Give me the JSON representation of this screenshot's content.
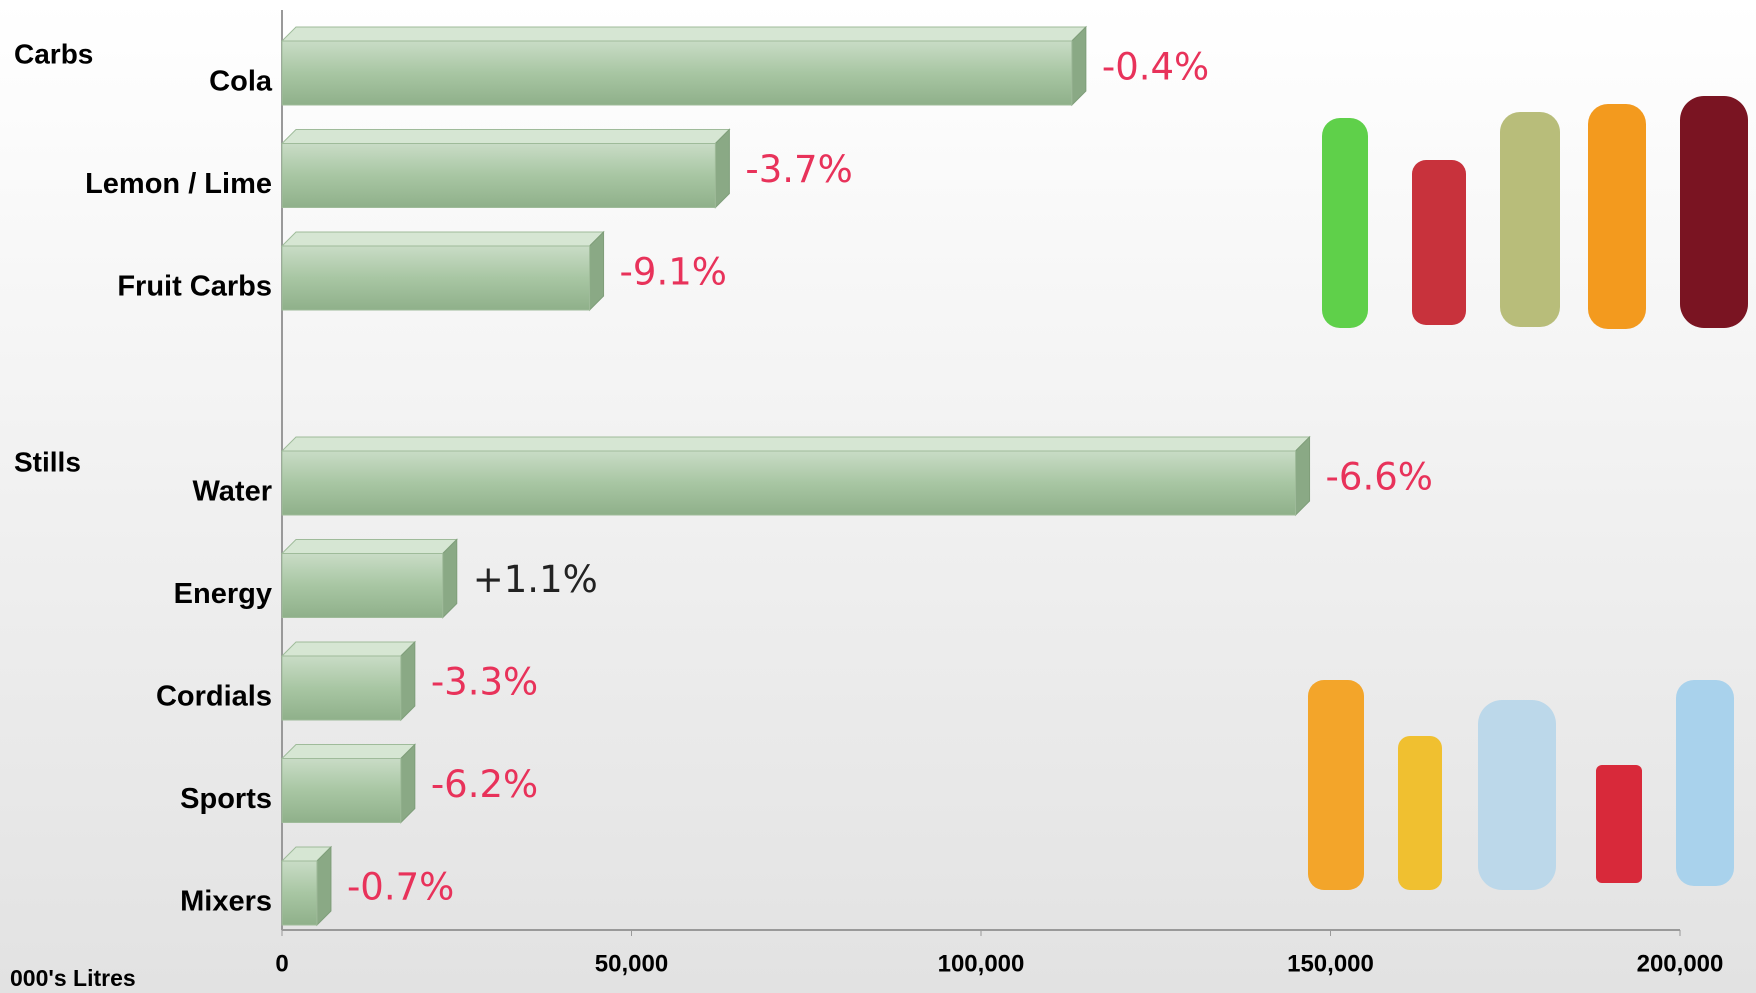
{
  "chart_data": {
    "type": "bar",
    "orientation": "horizontal",
    "group_labels": [
      "Carbs",
      "Stills"
    ],
    "categories": [
      "Cola",
      "Lemon / Lime",
      "Fruit Carbs",
      null,
      "Water",
      "Energy",
      "Cordials",
      "Sports",
      "Mixers"
    ],
    "values": [
      113000,
      62000,
      44000,
      null,
      145000,
      23000,
      17000,
      17000,
      5000
    ],
    "change_labels": [
      "-0.4%",
      "-3.7%",
      "-9.1%",
      null,
      "-6.6%",
      "+1.1%",
      "-3.3%",
      "-6.2%",
      "-0.7%"
    ],
    "change_label_colors": [
      "#e8325a",
      "#e8325a",
      "#e8325a",
      null,
      "#e8325a",
      "#222222",
      "#e8325a",
      "#e8325a",
      "#e8325a"
    ],
    "color": "#a8c6a3",
    "xlim": [
      0,
      200000
    ],
    "xticks": [
      0,
      {
        "value": 50000,
        "label": "50,000"
      },
      {
        "value": 100000,
        "label": "100,000"
      },
      {
        "value": 150000,
        "label": "150,000"
      },
      {
        "value": 200000,
        "label": "200,000"
      }
    ],
    "x_label": "000's Litres"
  }
}
